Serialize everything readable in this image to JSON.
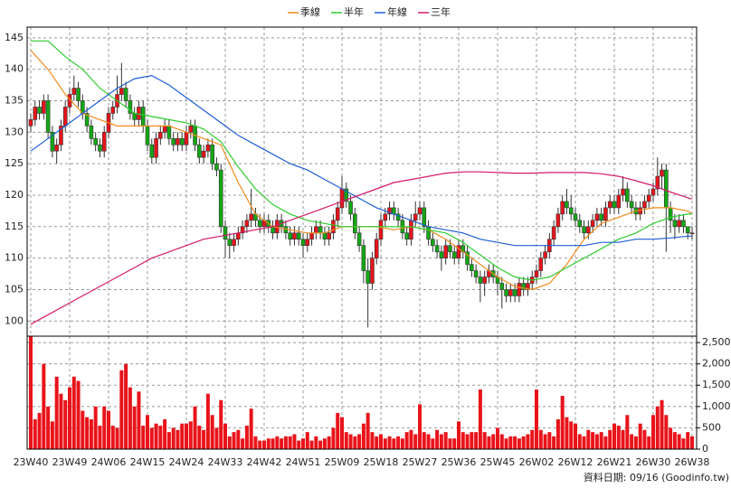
{
  "chart_data": [
    {
      "type": "candlestick",
      "categories": [
        "23W40",
        null,
        null,
        null,
        null,
        null,
        null,
        null,
        null,
        "23W49",
        null,
        null,
        null,
        null,
        null,
        null,
        null,
        null,
        "24W06",
        null,
        null,
        null,
        null,
        null,
        null,
        null,
        null,
        "24W15",
        null,
        null,
        null,
        null,
        null,
        null,
        null,
        null,
        "24W24",
        null,
        null,
        null,
        null,
        null,
        null,
        null,
        null,
        "24W33",
        null,
        null,
        null,
        null,
        null,
        null,
        null,
        null,
        "24W42",
        null,
        null,
        null,
        null,
        null,
        null,
        null,
        null,
        "24W51",
        null,
        null,
        null,
        null,
        null,
        null,
        null,
        null,
        "25W09",
        null,
        null,
        null,
        null,
        null,
        null,
        null,
        null,
        "25W18",
        null,
        null,
        null,
        null,
        null,
        null,
        null,
        null,
        "25W27",
        null,
        null,
        null,
        null,
        null,
        null,
        null,
        null,
        "25W36",
        null,
        null,
        null,
        null,
        null,
        null,
        null,
        null,
        "25W45",
        null,
        null,
        null,
        null,
        null,
        null,
        null,
        null,
        "26W02",
        null,
        null,
        null,
        null,
        null,
        null,
        null,
        null,
        "26W12",
        null,
        null,
        null,
        null,
        null,
        null,
        null,
        null,
        "26W21",
        null,
        null,
        null,
        null,
        null,
        null,
        null,
        null,
        "26W30",
        null,
        null,
        null,
        null,
        null,
        null,
        null,
        null,
        "26W38"
      ],
      "open": [
        131,
        132,
        134,
        133,
        135,
        130,
        127,
        128,
        131,
        134,
        136,
        137,
        135,
        133,
        131,
        129,
        128,
        127,
        130,
        133,
        134,
        136,
        137,
        135,
        133,
        132,
        134,
        131,
        128,
        126,
        129,
        130,
        131,
        129,
        128,
        129,
        128,
        130,
        131,
        128,
        126,
        127,
        128,
        125,
        124,
        115,
        113,
        112,
        113,
        114,
        115,
        116,
        117,
        116,
        115,
        116,
        115,
        114,
        116,
        115,
        114,
        113,
        114,
        113,
        112,
        113,
        114,
        115,
        114,
        113,
        114,
        116,
        118,
        121,
        119,
        117,
        114,
        112,
        108,
        106,
        110,
        113,
        116,
        117,
        118,
        117,
        116,
        114,
        113,
        116,
        117,
        118,
        115,
        113,
        112,
        111,
        110,
        112,
        111,
        110,
        112,
        111,
        109,
        108,
        107,
        106,
        107,
        108,
        107,
        106,
        105,
        104,
        105,
        104,
        106,
        105,
        106,
        107,
        108,
        110,
        111,
        113,
        115,
        117,
        119,
        118,
        117,
        116,
        115,
        114,
        115,
        116,
        117,
        116,
        118,
        119,
        118,
        120,
        121,
        119,
        118,
        117,
        118,
        119,
        120,
        121,
        123,
        124,
        118,
        116,
        115,
        116,
        115,
        114
      ],
      "high": [
        133,
        135,
        135,
        136,
        136,
        131,
        129,
        132,
        135,
        137,
        139,
        138,
        136,
        134,
        132,
        130,
        129,
        131,
        134,
        135,
        139,
        141,
        138,
        136,
        134,
        135,
        135,
        132,
        129,
        130,
        131,
        132,
        132,
        130,
        130,
        130,
        131,
        132,
        132,
        129,
        128,
        129,
        129,
        126,
        125,
        116,
        114,
        114,
        115,
        116,
        117,
        121,
        118,
        117,
        117,
        117,
        116,
        117,
        117,
        116,
        115,
        115,
        115,
        114,
        114,
        115,
        116,
        116,
        115,
        115,
        117,
        119,
        123,
        122,
        120,
        118,
        115,
        113,
        110,
        111,
        114,
        117,
        118,
        119,
        119,
        118,
        117,
        115,
        117,
        119,
        119,
        119,
        116,
        114,
        113,
        112,
        113,
        113,
        112,
        113,
        113,
        112,
        110,
        109,
        108,
        108,
        109,
        109,
        108,
        107,
        106,
        106,
        106,
        107,
        107,
        107,
        108,
        109,
        111,
        112,
        114,
        116,
        118,
        120,
        121,
        120,
        118,
        117,
        116,
        116,
        117,
        118,
        118,
        119,
        120,
        120,
        121,
        123,
        122,
        120,
        119,
        119,
        120,
        121,
        122,
        126,
        125,
        125,
        119,
        117,
        117,
        117,
        115,
        115
      ],
      "low": [
        130,
        131,
        132,
        132,
        129,
        126,
        125,
        127,
        130,
        133,
        135,
        134,
        132,
        130,
        128,
        127,
        126,
        126,
        129,
        132,
        133,
        135,
        134,
        132,
        131,
        131,
        130,
        127,
        125,
        125,
        128,
        129,
        128,
        127,
        127,
        127,
        127,
        129,
        127,
        125,
        125,
        126,
        124,
        123,
        114,
        110,
        110,
        111,
        112,
        113,
        114,
        115,
        115,
        114,
        114,
        114,
        113,
        113,
        114,
        113,
        112,
        112,
        112,
        110,
        111,
        112,
        113,
        113,
        112,
        112,
        113,
        115,
        117,
        118,
        116,
        113,
        111,
        106,
        99,
        105,
        109,
        112,
        115,
        116,
        116,
        115,
        113,
        112,
        112,
        115,
        116,
        114,
        112,
        111,
        110,
        108,
        109,
        110,
        109,
        109,
        110,
        108,
        107,
        106,
        103,
        104,
        106,
        106,
        104,
        102,
        103,
        103,
        103,
        103,
        104,
        104,
        105,
        106,
        107,
        109,
        110,
        112,
        114,
        116,
        117,
        116,
        115,
        114,
        113,
        113,
        114,
        115,
        115,
        115,
        117,
        117,
        117,
        119,
        118,
        117,
        116,
        116,
        117,
        118,
        119,
        120,
        121,
        111,
        114,
        113,
        114,
        114,
        113,
        113
      ],
      "close": [
        132,
        134,
        133,
        135,
        130,
        127,
        128,
        131,
        134,
        136,
        137,
        135,
        133,
        131,
        129,
        128,
        127,
        130,
        133,
        134,
        136,
        137,
        135,
        133,
        132,
        134,
        131,
        128,
        126,
        129,
        130,
        131,
        129,
        128,
        129,
        128,
        130,
        131,
        128,
        126,
        127,
        128,
        125,
        124,
        115,
        113,
        112,
        113,
        114,
        115,
        116,
        117,
        116,
        115,
        116,
        115,
        114,
        116,
        115,
        114,
        113,
        114,
        113,
        112,
        113,
        114,
        115,
        114,
        113,
        114,
        116,
        118,
        121,
        119,
        117,
        114,
        112,
        108,
        106,
        110,
        113,
        116,
        117,
        118,
        117,
        116,
        114,
        113,
        116,
        117,
        118,
        115,
        113,
        112,
        111,
        110,
        112,
        111,
        110,
        112,
        111,
        109,
        108,
        107,
        106,
        107,
        108,
        107,
        106,
        105,
        104,
        105,
        104,
        106,
        105,
        106,
        107,
        108,
        110,
        111,
        113,
        115,
        117,
        119,
        118,
        117,
        116,
        115,
        114,
        115,
        116,
        117,
        116,
        118,
        119,
        118,
        120,
        121,
        119,
        118,
        117,
        118,
        119,
        120,
        121,
        123,
        124,
        118,
        116,
        115,
        116,
        115,
        114,
        114
      ],
      "up_color": "#e8141a",
      "down_color": "#13a813",
      "series": [
        {
          "name": "季線",
          "color": "#f08c1e",
          "x": [
            0,
            4,
            8,
            12,
            16,
            20,
            24,
            28,
            32,
            36,
            40,
            44,
            48,
            52,
            56,
            60,
            64,
            68,
            72,
            76,
            80,
            84,
            88,
            92,
            96,
            100,
            104,
            108,
            112,
            116,
            120,
            124,
            128,
            132,
            136,
            140,
            144,
            148,
            152,
            153
          ],
          "values": [
            143,
            140,
            136,
            133,
            132,
            131,
            131,
            131,
            131,
            130,
            129,
            128,
            122,
            117,
            115,
            114.5,
            114,
            114,
            115,
            115,
            115,
            114.5,
            115,
            114.5,
            113,
            111,
            109,
            107,
            105.5,
            105,
            106,
            109,
            113,
            115.5,
            116.5,
            117.5,
            118,
            118,
            117.5,
            117
          ]
        },
        {
          "name": "半年",
          "color": "#2ecc2e",
          "x": [
            0,
            4,
            8,
            12,
            16,
            20,
            24,
            28,
            32,
            36,
            40,
            44,
            48,
            52,
            56,
            60,
            64,
            68,
            72,
            76,
            80,
            84,
            88,
            92,
            96,
            100,
            104,
            108,
            112,
            116,
            120,
            124,
            128,
            132,
            136,
            140,
            144,
            148,
            152,
            153
          ],
          "values": [
            144.5,
            144.5,
            142,
            140,
            137,
            135,
            133,
            132.5,
            132,
            131.5,
            130.5,
            128.5,
            124.5,
            121,
            118.5,
            117,
            116,
            115.5,
            115,
            115,
            115,
            115,
            115,
            114.5,
            114,
            112.5,
            110.5,
            108.5,
            107,
            106.5,
            107,
            108.5,
            110,
            111.5,
            113,
            114,
            115.5,
            116.5,
            117,
            117
          ]
        },
        {
          "name": "年線",
          "color": "#1f5fd6",
          "x": [
            0,
            4,
            8,
            12,
            16,
            20,
            24,
            28,
            32,
            36,
            40,
            44,
            48,
            52,
            56,
            60,
            64,
            68,
            72,
            76,
            80,
            84,
            88,
            92,
            96,
            100,
            104,
            108,
            112,
            116,
            120,
            124,
            128,
            132,
            136,
            140,
            144,
            148,
            152,
            153
          ],
          "values": [
            127,
            129,
            131,
            133,
            135,
            137,
            138.5,
            139,
            137.5,
            135.5,
            133.5,
            131.5,
            129.5,
            128,
            126.5,
            125,
            124,
            122.5,
            121,
            119.5,
            118,
            117,
            116,
            115,
            114.5,
            114,
            113,
            112.5,
            112,
            112,
            112,
            112,
            112,
            112.5,
            112.5,
            113,
            113,
            113.2,
            113.5,
            113.5
          ]
        },
        {
          "name": "三年",
          "color": "#d41a6a",
          "x": [
            0,
            4,
            8,
            12,
            16,
            20,
            24,
            28,
            32,
            36,
            40,
            44,
            48,
            52,
            56,
            60,
            64,
            68,
            72,
            76,
            80,
            84,
            88,
            92,
            96,
            100,
            104,
            108,
            112,
            116,
            120,
            124,
            128,
            132,
            136,
            140,
            144,
            148,
            152,
            153
          ],
          "values": [
            99.5,
            101,
            102.5,
            104,
            105.5,
            107,
            108.5,
            110,
            111,
            112,
            113,
            113.5,
            114,
            114.5,
            115,
            116,
            117,
            118,
            119,
            120,
            121,
            122,
            122.5,
            123,
            123.5,
            123.7,
            123.7,
            123.6,
            123.5,
            123.5,
            123.6,
            123.6,
            123.6,
            123.4,
            123,
            122.3,
            121.5,
            120.5,
            119.6,
            119.4
          ]
        }
      ],
      "ylim": [
        97.6,
        146.7
      ],
      "yticks": [
        100,
        105,
        110,
        115,
        120,
        125,
        130,
        135,
        140,
        145
      ],
      "grid": true,
      "legend": "top"
    },
    {
      "type": "bar",
      "color": "#e8141a",
      "values": [
        2650,
        700,
        850,
        2000,
        1000,
        650,
        1700,
        1300,
        1150,
        1450,
        1700,
        1600,
        900,
        750,
        700,
        1000,
        550,
        1000,
        900,
        550,
        500,
        1850,
        2000,
        1450,
        1000,
        1350,
        550,
        800,
        500,
        600,
        550,
        700,
        400,
        500,
        450,
        600,
        600,
        650,
        1000,
        550,
        450,
        1300,
        800,
        500,
        1150,
        600,
        300,
        400,
        450,
        250,
        550,
        950,
        300,
        200,
        200,
        250,
        250,
        300,
        250,
        300,
        300,
        350,
        200,
        250,
        400,
        200,
        300,
        200,
        250,
        300,
        500,
        850,
        750,
        400,
        350,
        300,
        350,
        600,
        850,
        400,
        300,
        350,
        250,
        300,
        250,
        300,
        250,
        400,
        450,
        350,
        1050,
        400,
        350,
        250,
        450,
        350,
        400,
        250,
        250,
        650,
        400,
        350,
        400,
        400,
        1400,
        400,
        300,
        350,
        500,
        350,
        250,
        300,
        300,
        250,
        300,
        350,
        450,
        1400,
        450,
        350,
        400,
        300,
        700,
        1250,
        750,
        650,
        600,
        350,
        300,
        450,
        400,
        350,
        400,
        300,
        450,
        600,
        550,
        450,
        800,
        350,
        300,
        600,
        450,
        300,
        800,
        1000,
        1150,
        800,
        500,
        400,
        350,
        250,
        400,
        300
      ],
      "ylim": [
        0,
        2650
      ],
      "yticks": [
        0,
        500,
        {
          "value": 1000,
          "label": "1,000"
        },
        {
          "value": 1500,
          "label": "1,500"
        },
        {
          "value": 2000,
          "label": "2,000"
        },
        {
          "value": 2500,
          "label": "2,500"
        }
      ],
      "grid": true
    }
  ],
  "footer": "資料日期: 09/16  (Goodinfo.tw)"
}
